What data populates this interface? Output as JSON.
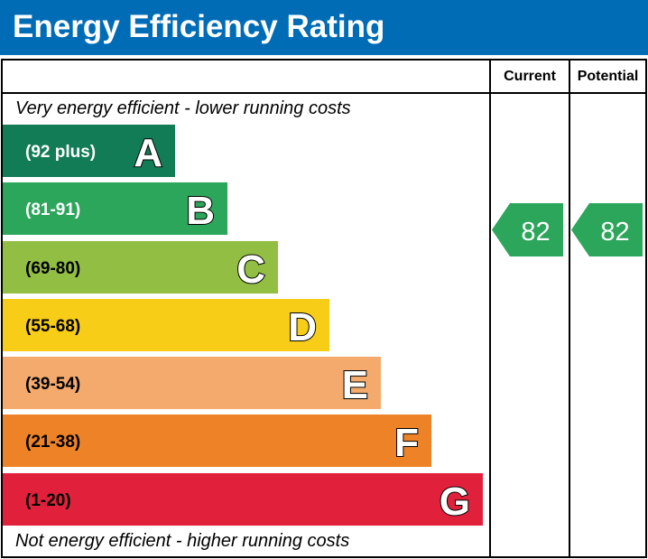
{
  "title": "Energy Efficiency Rating",
  "columns": {
    "current": "Current",
    "potential": "Potential"
  },
  "top_note": "Very energy efficient - lower running costs",
  "bottom_note": "Not energy efficient - higher running costs",
  "chart_data": {
    "type": "bar",
    "title": "Energy Efficiency Rating",
    "categories": [
      "A",
      "B",
      "C",
      "D",
      "E",
      "F",
      "G"
    ],
    "bands": [
      {
        "letter": "A",
        "range": "(92 plus)",
        "color": "#117c55",
        "text_color": "#ffffff"
      },
      {
        "letter": "B",
        "range": "(81-91)",
        "color": "#2ca65b",
        "text_color": "#ffffff"
      },
      {
        "letter": "C",
        "range": "(69-80)",
        "color": "#91be43",
        "text_color": "#000000"
      },
      {
        "letter": "D",
        "range": "(55-68)",
        "color": "#f7cd17",
        "text_color": "#000000"
      },
      {
        "letter": "E",
        "range": "(39-54)",
        "color": "#f3aa6c",
        "text_color": "#000000"
      },
      {
        "letter": "F",
        "range": "(21-38)",
        "color": "#ee8227",
        "text_color": "#000000"
      },
      {
        "letter": "G",
        "range": "(1-20)",
        "color": "#e1213b",
        "text_color": "#000000"
      }
    ],
    "current": {
      "value": "82",
      "band": "B",
      "color": "#2ca65b"
    },
    "potential": {
      "value": "82",
      "band": "B",
      "color": "#2ca65b"
    }
  }
}
